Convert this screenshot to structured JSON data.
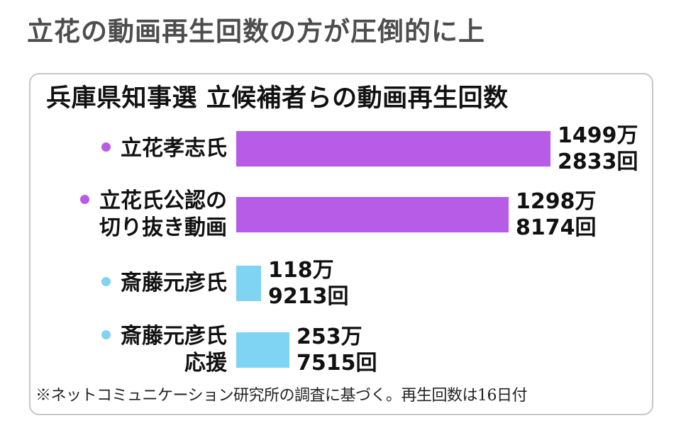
{
  "headline": "立花の動画再生回数の方が圧倒的に上",
  "chart_data": {
    "type": "bar",
    "orientation": "horizontal",
    "title": "兵庫県知事選 立候補者らの動画再生回数",
    "categories": [
      "立花孝志氏",
      "立花氏公認の切り抜き動画",
      "斎藤元彦氏",
      "斎藤元彦氏応援"
    ],
    "category_lines": [
      [
        "立花孝志氏"
      ],
      [
        "立花氏公認の",
        "切り抜き動画"
      ],
      [
        "斎藤元彦氏"
      ],
      [
        "斎藤元彦氏",
        "応援"
      ]
    ],
    "values": [
      14992833,
      12988174,
      1189213,
      2537515
    ],
    "value_labels": [
      [
        "1499万",
        "2833回"
      ],
      [
        "1298万",
        "8174回"
      ],
      [
        "118万",
        "9213回"
      ],
      [
        "253万",
        "7515回"
      ]
    ],
    "colors": [
      "#b65ce6",
      "#b65ce6",
      "#7fd3f3",
      "#7fd3f3"
    ],
    "xlim": [
      0,
      15000000
    ],
    "grid": false
  },
  "footnote": "※ネットコミュニケーション研究所の調査に基づく。再生回数は16日付"
}
